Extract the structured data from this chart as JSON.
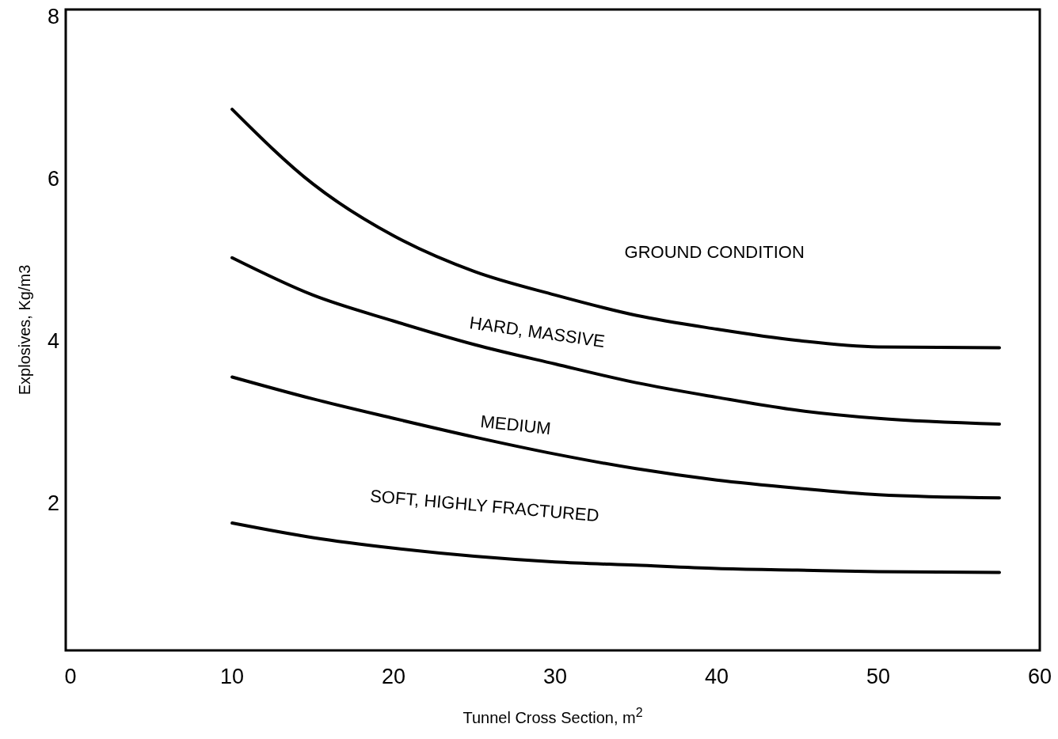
{
  "chart_data": {
    "type": "line",
    "xlabel": "Tunnel Cross Section, m$^{2}$",
    "ylabel": "Explosives, Kg/m3",
    "x": [
      10,
      15,
      20,
      25,
      30,
      35,
      40,
      45,
      50,
      57.5
    ],
    "xlim": [
      -0.3,
      60
    ],
    "ylim": [
      0.18,
      8.08
    ],
    "xticks": [
      0,
      10,
      20,
      30,
      40,
      50,
      60
    ],
    "yticks": [
      2,
      4,
      6,
      8
    ],
    "series": [
      {
        "color": "#000000",
        "values": [
          6.85,
          5.93,
          5.29,
          4.85,
          4.56,
          4.31,
          4.14,
          4.0,
          3.92,
          3.91
        ]
      },
      {
        "color": "#000000",
        "values": [
          5.02,
          4.56,
          4.24,
          3.95,
          3.71,
          3.48,
          3.3,
          3.14,
          3.04,
          2.97
        ]
      },
      {
        "color": "#000000",
        "values": [
          3.55,
          3.28,
          3.04,
          2.81,
          2.6,
          2.42,
          2.28,
          2.18,
          2.1,
          2.06
        ]
      },
      {
        "color": "#000000",
        "values": [
          1.75,
          1.57,
          1.44,
          1.34,
          1.27,
          1.23,
          1.19,
          1.17,
          1.15,
          1.14
        ]
      }
    ],
    "annotations": [
      "GROUND CONDITION",
      "HARD, MASSIVE",
      "MEDIUM",
      "SOFT, HIGHLY FRACTURED"
    ]
  }
}
